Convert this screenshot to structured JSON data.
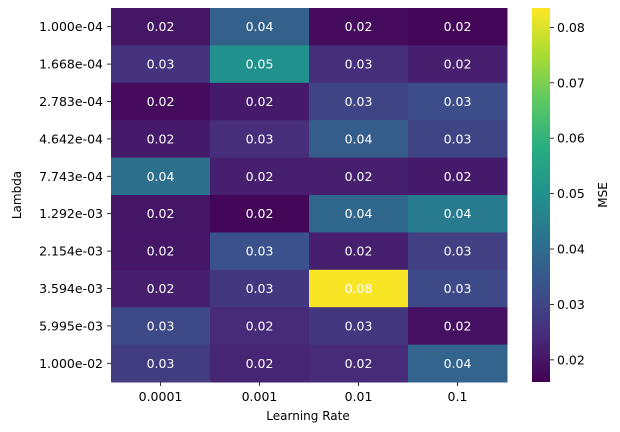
{
  "chart_data": {
    "type": "heatmap",
    "xlabel": "Learning Rate",
    "ylabel": "Lambda",
    "x_categories": [
      "0.0001",
      "0.001",
      "0.01",
      "0.1"
    ],
    "y_categories": [
      "1.000e-04",
      "1.668e-04",
      "2.783e-04",
      "4.642e-04",
      "7.743e-04",
      "1.292e-03",
      "2.154e-03",
      "3.594e-03",
      "5.995e-03",
      "1.000e-02"
    ],
    "values": [
      [
        0.02,
        0.037,
        0.018,
        0.017
      ],
      [
        0.026,
        0.05,
        0.025,
        0.022
      ],
      [
        0.018,
        0.021,
        0.03,
        0.032
      ],
      [
        0.021,
        0.025,
        0.036,
        0.03
      ],
      [
        0.041,
        0.022,
        0.022,
        0.021
      ],
      [
        0.02,
        0.017,
        0.039,
        0.044
      ],
      [
        0.02,
        0.033,
        0.022,
        0.029
      ],
      [
        0.022,
        0.027,
        0.083,
        0.031
      ],
      [
        0.031,
        0.024,
        0.027,
        0.019
      ],
      [
        0.028,
        0.023,
        0.024,
        0.038
      ]
    ],
    "labels": [
      [
        "0.02",
        "0.04",
        "0.02",
        "0.02"
      ],
      [
        "0.03",
        "0.05",
        "0.03",
        "0.02"
      ],
      [
        "0.02",
        "0.02",
        "0.03",
        "0.03"
      ],
      [
        "0.02",
        "0.03",
        "0.04",
        "0.03"
      ],
      [
        "0.04",
        "0.02",
        "0.02",
        "0.02"
      ],
      [
        "0.02",
        "0.02",
        "0.04",
        "0.04"
      ],
      [
        "0.02",
        "0.03",
        "0.02",
        "0.03"
      ],
      [
        "0.02",
        "0.03",
        "0.08",
        "0.03"
      ],
      [
        "0.03",
        "0.02",
        "0.03",
        "0.02"
      ],
      [
        "0.03",
        "0.02",
        "0.02",
        "0.04"
      ]
    ],
    "colorbar": {
      "label": "MSE",
      "range": [
        0.016,
        0.0835
      ],
      "ticks": [
        0.02,
        0.03,
        0.04,
        0.05,
        0.06,
        0.07,
        0.08
      ],
      "tick_labels": [
        "0.02",
        "0.03",
        "0.04",
        "0.05",
        "0.06",
        "0.07",
        "0.08"
      ]
    },
    "colormap": "viridis",
    "annotation_color": "#ffffff",
    "grid": false
  }
}
